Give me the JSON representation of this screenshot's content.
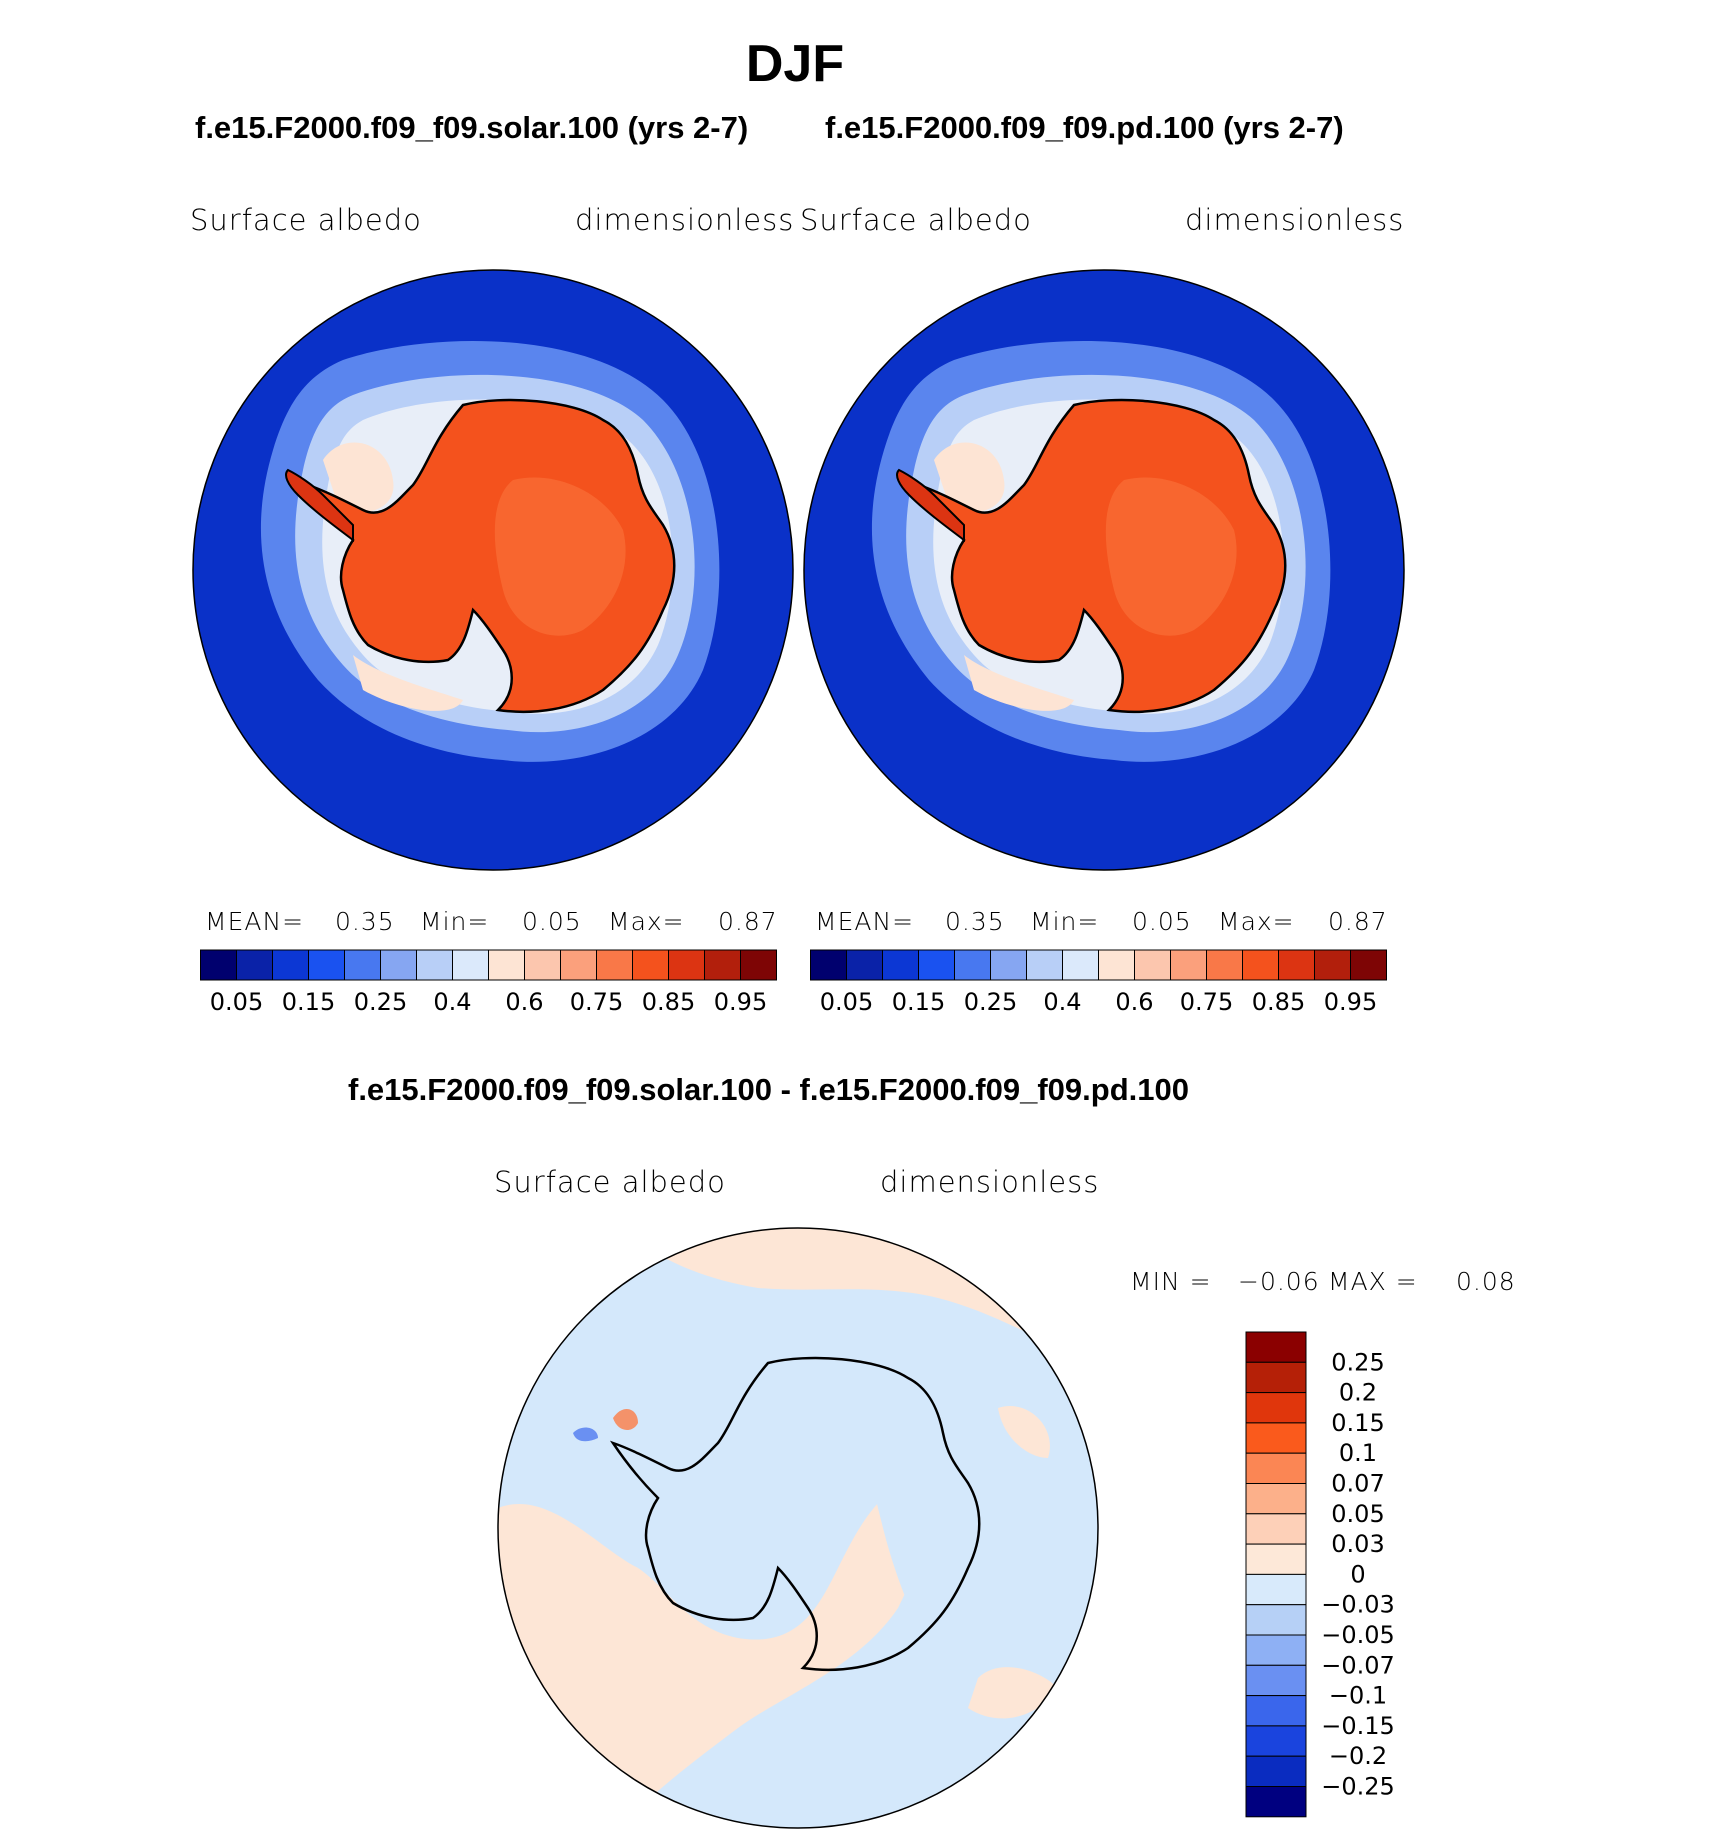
{
  "page_title": "DJF",
  "colors": {
    "ocean": "#0a31c8",
    "land": "#f4521d",
    "coast": "#000000",
    "diff_neg": "#d4e8fb",
    "diff_pos": "#fde6d6"
  },
  "panels": [
    {
      "case_title": "f.e15.F2000.f09_f09.solar.100 (yrs 2-7)",
      "variable": "Surface  albedo",
      "units": "dimensionless",
      "stats": {
        "mean_label": "MEAN=",
        "mean_value": "0.35",
        "min_label": "Min=",
        "min_value": "0.05",
        "max_label": "Max=",
        "max_value": "0.87"
      }
    },
    {
      "case_title": "f.e15.F2000.f09_f09.pd.100 (yrs 2-7)",
      "variable": "Surface  albedo",
      "units": "dimensionless",
      "stats": {
        "mean_label": "MEAN=",
        "mean_value": "0.35",
        "min_label": "Min=",
        "min_value": "0.05",
        "max_label": "Max=",
        "max_value": "0.87"
      }
    }
  ],
  "abs_colorbar": {
    "colors": [
      "#00006e",
      "#0a22a8",
      "#0c37d4",
      "#1a52f0",
      "#4878f0",
      "#86a6f2",
      "#b8cff7",
      "#dbe9fb",
      "#fde4d4",
      "#fcc6ae",
      "#fba07c",
      "#f97848",
      "#f4521d",
      "#dc3412",
      "#b21f0c",
      "#7e0505"
    ],
    "tick_labels": [
      "0.05",
      "0.15",
      "0.25",
      "0.4",
      "0.6",
      "0.75",
      "0.85",
      "0.95"
    ]
  },
  "diff_panel": {
    "title": "f.e15.F2000.f09_f09.solar.100 - f.e15.F2000.f09_f09.pd.100",
    "variable": "Surface  albedo",
    "units": "dimensionless",
    "min_label": "MIN =",
    "min_value": "−0.06",
    "max_label": "MAX =",
    "max_value": "0.08"
  },
  "diff_colorbar": {
    "colors": [
      "#8b0000",
      "#b52007",
      "#e0360c",
      "#fa5a1c",
      "#fb8654",
      "#fcb08a",
      "#fdd0b8",
      "#fde8d8",
      "#d8eafb",
      "#b6d0f6",
      "#8eb0f4",
      "#6a90f2",
      "#3a66ec",
      "#1a44de",
      "#0a2cc0",
      "#000080"
    ],
    "tick_labels": [
      "0.25",
      "0.2",
      "0.15",
      "0.1",
      "0.07",
      "0.05",
      "0.03",
      "0",
      "−0.03",
      "−0.05",
      "−0.07",
      "−0.1",
      "−0.15",
      "−0.2",
      "−0.25"
    ]
  }
}
